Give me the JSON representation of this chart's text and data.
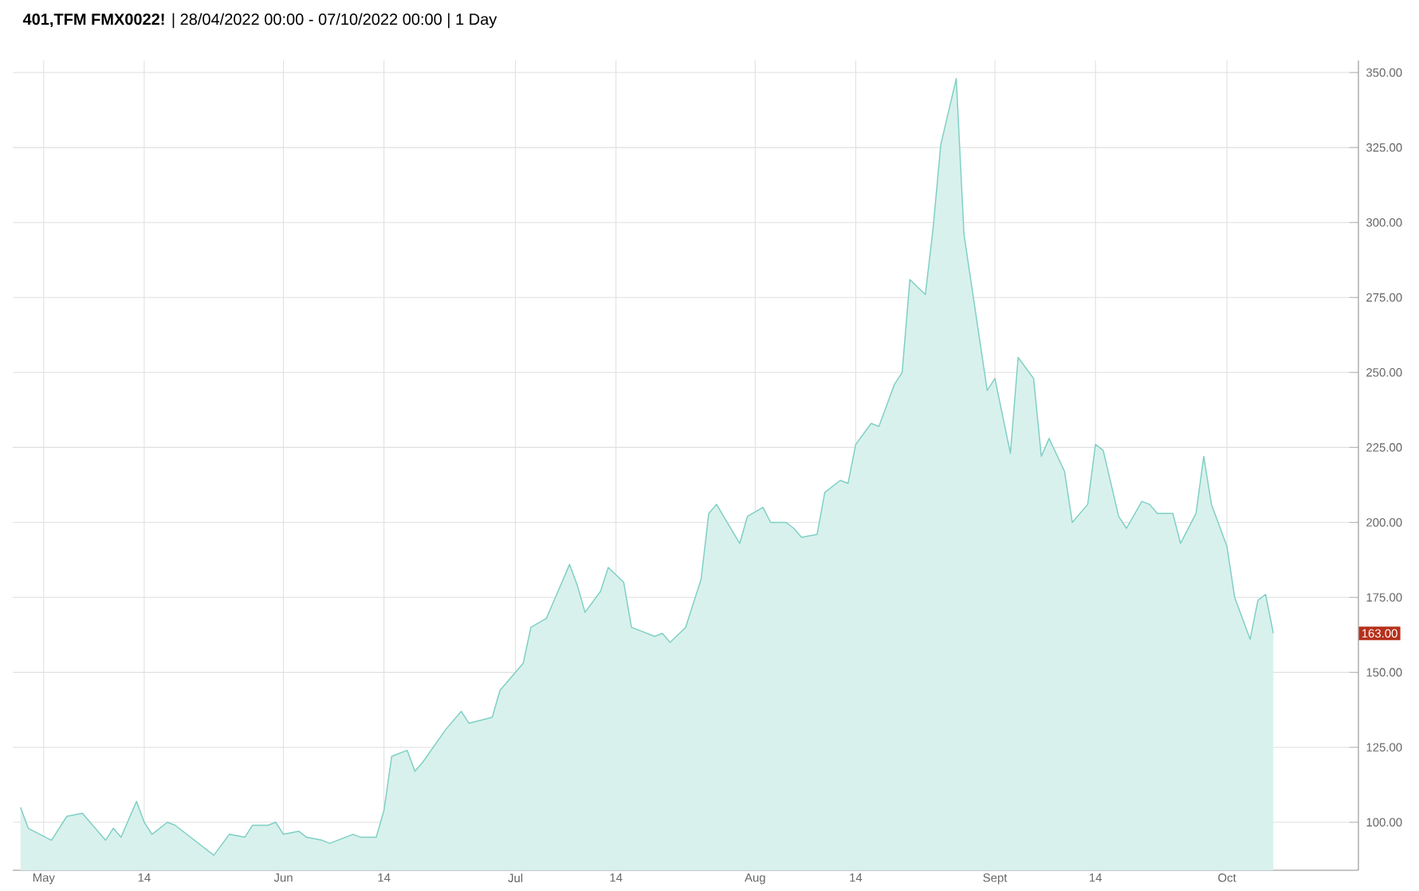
{
  "chart_data": {
    "type": "area",
    "title": "**401,TFM FMX0022!** | 28/04/2022 00:00 - 07/10/2022 00:00 | 1 Day",
    "x": [
      "2022-04-28",
      "2022-04-29",
      "2022-05-02",
      "2022-05-04",
      "2022-05-06",
      "2022-05-09",
      "2022-05-10",
      "2022-05-11",
      "2022-05-13",
      "2022-05-14",
      "2022-05-15",
      "2022-05-17",
      "2022-05-18",
      "2022-05-23",
      "2022-05-25",
      "2022-05-27",
      "2022-05-28",
      "2022-05-30",
      "2022-05-31",
      "2022-06-01",
      "2022-06-03",
      "2022-06-04",
      "2022-06-06",
      "2022-06-07",
      "2022-06-08",
      "2022-06-10",
      "2022-06-11",
      "2022-06-13",
      "2022-06-14",
      "2022-06-15",
      "2022-06-17",
      "2022-06-18",
      "2022-06-19",
      "2022-06-22",
      "2022-06-24",
      "2022-06-25",
      "2022-06-28",
      "2022-06-29",
      "2022-07-02",
      "2022-07-03",
      "2022-07-05",
      "2022-07-06",
      "2022-07-08",
      "2022-07-09",
      "2022-07-10",
      "2022-07-12",
      "2022-07-13",
      "2022-07-15",
      "2022-07-16",
      "2022-07-17",
      "2022-07-19",
      "2022-07-20",
      "2022-07-21",
      "2022-07-23",
      "2022-07-25",
      "2022-07-26",
      "2022-07-27",
      "2022-07-30",
      "2022-07-31",
      "2022-08-02",
      "2022-08-03",
      "2022-08-05",
      "2022-08-06",
      "2022-08-07",
      "2022-08-09",
      "2022-08-10",
      "2022-08-12",
      "2022-08-13",
      "2022-08-14",
      "2022-08-16",
      "2022-08-17",
      "2022-08-19",
      "2022-08-20",
      "2022-08-21",
      "2022-08-23",
      "2022-08-24",
      "2022-08-25",
      "2022-08-27",
      "2022-08-28",
      "2022-08-31",
      "2022-09-01",
      "2022-09-03",
      "2022-09-04",
      "2022-09-06",
      "2022-09-07",
      "2022-09-08",
      "2022-09-10",
      "2022-09-11",
      "2022-09-13",
      "2022-09-14",
      "2022-09-15",
      "2022-09-17",
      "2022-09-18",
      "2022-09-20",
      "2022-09-21",
      "2022-09-22",
      "2022-09-24",
      "2022-09-25",
      "2022-09-27",
      "2022-09-28",
      "2022-09-29",
      "2022-10-01",
      "2022-10-02",
      "2022-10-04",
      "2022-10-05",
      "2022-10-06",
      "2022-10-07"
    ],
    "series": [
      {
        "color": "#7ecfc4",
        "values": [
          105,
          98,
          94,
          102,
          103,
          94,
          98,
          95,
          107,
          100,
          96,
          100,
          99,
          89,
          96,
          95,
          99,
          99,
          100,
          96,
          97,
          95,
          94,
          93,
          94,
          96,
          95,
          95,
          104,
          122,
          124,
          117,
          120,
          131,
          137,
          133,
          135,
          144,
          153,
          165,
          168,
          174,
          186,
          179,
          170,
          177,
          185,
          180,
          165,
          164,
          162,
          163,
          160,
          165,
          181,
          203,
          206,
          193,
          202,
          205,
          200,
          200,
          198,
          195,
          196,
          210,
          214,
          213,
          226,
          233,
          232,
          246,
          250,
          281,
          276,
          298,
          326,
          348,
          296,
          244,
          248,
          223,
          255,
          248,
          222,
          228,
          217,
          200,
          206,
          226,
          224,
          202,
          198,
          207,
          206,
          203,
          203,
          193,
          203,
          222,
          206,
          192,
          175,
          161,
          174,
          176,
          163
        ]
      }
    ],
    "xlim": [
      "2022-04-27",
      "2022-10-18"
    ],
    "xticks": [
      {
        "value": "2022-05-01",
        "label": "May"
      },
      {
        "value": "2022-05-14",
        "label": "14"
      },
      {
        "value": "2022-06-01",
        "label": "Jun"
      },
      {
        "value": "2022-06-14",
        "label": "14"
      },
      {
        "value": "2022-07-01",
        "label": "Jul"
      },
      {
        "value": "2022-07-14",
        "label": "14"
      },
      {
        "value": "2022-08-01",
        "label": "Aug"
      },
      {
        "value": "2022-08-14",
        "label": "14"
      },
      {
        "value": "2022-09-01",
        "label": "Sept"
      },
      {
        "value": "2022-09-14",
        "label": "14"
      },
      {
        "value": "2022-10-01",
        "label": "Oct"
      }
    ],
    "ylim": [
      84,
      354
    ],
    "yticks": [
      {
        "value": 100,
        "label": "100.00"
      },
      {
        "value": 125,
        "label": "125.00"
      },
      {
        "value": 150,
        "label": "150.00"
      },
      {
        "value": 175,
        "label": "175.00"
      },
      {
        "value": 200,
        "label": "200.00"
      },
      {
        "value": 225,
        "label": "225.00"
      },
      {
        "value": 250,
        "label": "250.00"
      },
      {
        "value": 275,
        "label": "275.00"
      },
      {
        "value": 300,
        "label": "300.00"
      },
      {
        "value": 325,
        "label": "325.00"
      },
      {
        "value": 350,
        "label": "350.00"
      }
    ],
    "grid": true,
    "annotations": [
      "163.00"
    ]
  }
}
